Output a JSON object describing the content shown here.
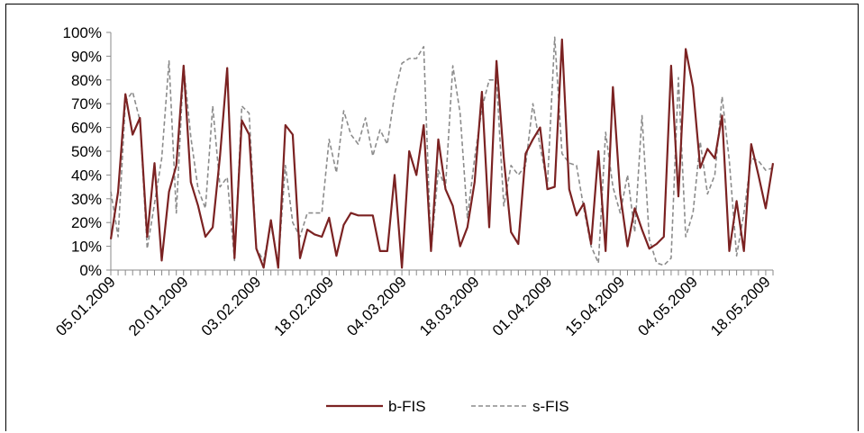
{
  "chart_data": {
    "type": "line",
    "title": "",
    "xlabel": "",
    "ylabel": "",
    "ylim": [
      0,
      1
    ],
    "y_ticks": [
      "0%",
      "10%",
      "20%",
      "30%",
      "40%",
      "50%",
      "60%",
      "70%",
      "80%",
      "90%",
      "100%"
    ],
    "x_tick_labels": [
      "05.01.2009",
      "20.01.2009",
      "03.02.2009",
      "18.02.2009",
      "04.03.2009",
      "18.03.2009",
      "01.04.2009",
      "15.04.2009",
      "04.05.2009",
      "18.05.2009"
    ],
    "grid": false,
    "legend_position": "bottom",
    "series": [
      {
        "name": "b-FIS",
        "color": "#7b2222",
        "style": "solid",
        "values": [
          0.13,
          0.33,
          0.74,
          0.57,
          0.64,
          0.14,
          0.45,
          0.04,
          0.33,
          0.44,
          0.86,
          0.37,
          0.27,
          0.14,
          0.18,
          0.48,
          0.85,
          0.05,
          0.63,
          0.57,
          0.09,
          0.01,
          0.21,
          0.01,
          0.61,
          0.57,
          0.05,
          0.17,
          0.15,
          0.14,
          0.22,
          0.06,
          0.19,
          0.24,
          0.23,
          0.23,
          0.23,
          0.08,
          0.08,
          0.4,
          0.01,
          0.5,
          0.4,
          0.61,
          0.08,
          0.55,
          0.34,
          0.27,
          0.1,
          0.18,
          0.37,
          0.75,
          0.18,
          0.88,
          0.47,
          0.16,
          0.11,
          0.49,
          0.55,
          0.6,
          0.34,
          0.35,
          0.97,
          0.34,
          0.23,
          0.28,
          0.11,
          0.5,
          0.08,
          0.77,
          0.32,
          0.1,
          0.26,
          0.17,
          0.09,
          0.11,
          0.14,
          0.86,
          0.31,
          0.93,
          0.77,
          0.43,
          0.51,
          0.47,
          0.65,
          0.08,
          0.29,
          0.08,
          0.53,
          0.4,
          0.26,
          0.45
        ]
      },
      {
        "name": "s-FIS",
        "color": "#8c8c8c",
        "style": "dashed",
        "values": [
          0.33,
          0.14,
          0.71,
          0.75,
          0.63,
          0.09,
          0.28,
          0.47,
          0.88,
          0.24,
          0.86,
          0.56,
          0.34,
          0.26,
          0.69,
          0.35,
          0.39,
          0.04,
          0.69,
          0.66,
          0.09,
          0.04,
          0.19,
          0.03,
          0.44,
          0.2,
          0.14,
          0.24,
          0.24,
          0.24,
          0.55,
          0.41,
          0.67,
          0.57,
          0.53,
          0.64,
          0.48,
          0.59,
          0.53,
          0.74,
          0.87,
          0.89,
          0.89,
          0.94,
          0.08,
          0.42,
          0.35,
          0.86,
          0.66,
          0.22,
          0.47,
          0.68,
          0.8,
          0.8,
          0.27,
          0.44,
          0.4,
          0.44,
          0.7,
          0.52,
          0.36,
          0.98,
          0.49,
          0.45,
          0.44,
          0.26,
          0.1,
          0.03,
          0.58,
          0.35,
          0.24,
          0.4,
          0.16,
          0.65,
          0.13,
          0.03,
          0.02,
          0.05,
          0.81,
          0.14,
          0.24,
          0.54,
          0.32,
          0.4,
          0.73,
          0.46,
          0.06,
          0.24,
          0.47,
          0.46,
          0.42,
          0.43
        ]
      }
    ]
  }
}
